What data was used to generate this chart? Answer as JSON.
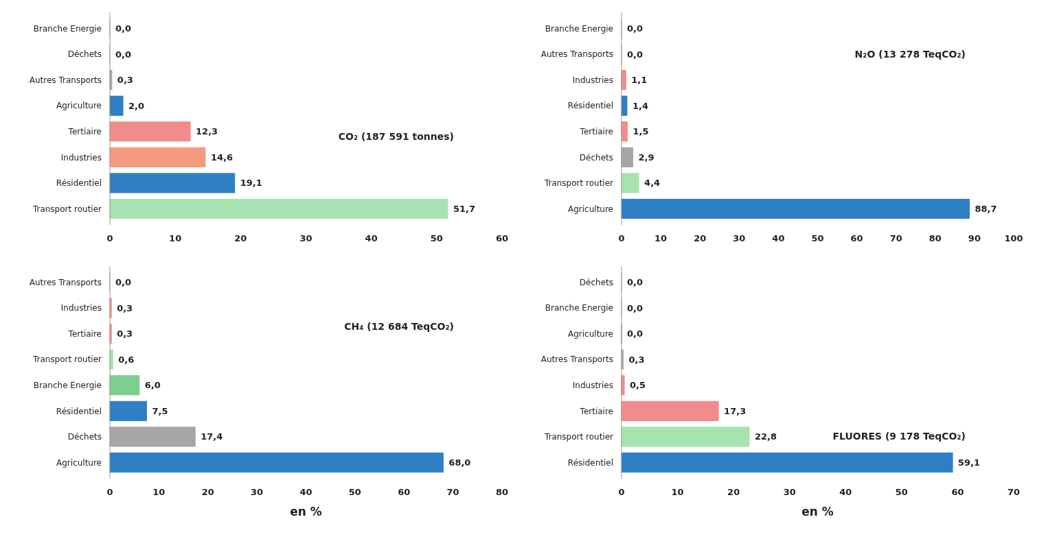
{
  "chart_data": [
    {
      "type": "bar",
      "orientation": "horizontal",
      "title": "CO₂ (187 591 tonnes)",
      "categories": [
        "Branche Energie",
        "Déchets",
        "Autres Transports",
        "Agriculture",
        "Tertiaire",
        "Industries",
        "Résidentiel",
        "Transport routier"
      ],
      "values": [
        0.0,
        0.0,
        0.3,
        2.0,
        12.3,
        14.6,
        19.1,
        51.7
      ],
      "colors": [
        "#7ccf8e",
        "#a6a6a6",
        "#a6a6a6",
        "#2e7fc4",
        "#f28b8b",
        "#f59a7f",
        "#2e7fc4",
        "#a6e3b0"
      ],
      "xlim": [
        0,
        60
      ],
      "xticks": [
        0,
        10,
        20,
        30,
        40,
        50,
        60
      ],
      "data_labels": true,
      "value_labels": [
        "0,0",
        "0,0",
        "0,3",
        "2,0",
        "12,3",
        "14,6",
        "19,1",
        "51,7"
      ],
      "grid": false
    },
    {
      "type": "bar",
      "orientation": "horizontal",
      "title": "N₂O (13 278 TeqCO₂)",
      "categories": [
        "Branche Energie",
        "Autres Transports",
        "Industries",
        "Résidentiel",
        "Tertiaire",
        "Déchets",
        "Transport routier",
        "Agriculture"
      ],
      "values": [
        0.0,
        0.0,
        1.1,
        1.4,
        1.5,
        2.9,
        4.4,
        88.7
      ],
      "colors": [
        "#7ccf8e",
        "#a6a6a6",
        "#f28b8b",
        "#2e7fc4",
        "#f28b8b",
        "#a6a6a6",
        "#a6e3b0",
        "#2e7fc4"
      ],
      "xlim": [
        0,
        100
      ],
      "xticks": [
        0,
        10,
        20,
        30,
        40,
        50,
        60,
        70,
        80,
        90,
        100
      ],
      "data_labels": true,
      "value_labels": [
        "0,0",
        "0,0",
        "1,1",
        "1,4",
        "1,5",
        "2,9",
        "4,4",
        "88,7"
      ],
      "grid": false
    },
    {
      "type": "bar",
      "orientation": "horizontal",
      "title": "CH₄ (12 684 TeqCO₂)",
      "xlabel": "en %",
      "categories": [
        "Autres Transports",
        "Industries",
        "Tertiaire",
        "Transport routier",
        "Branche Energie",
        "Résidentiel",
        "Déchets",
        "Agriculture"
      ],
      "values": [
        0.0,
        0.3,
        0.3,
        0.6,
        6.0,
        7.5,
        17.4,
        68.0
      ],
      "colors": [
        "#a6a6a6",
        "#f28b8b",
        "#f28b8b",
        "#a6e3b0",
        "#7ccf8e",
        "#2e7fc4",
        "#a6a6a6",
        "#2e7fc4"
      ],
      "xlim": [
        0,
        80
      ],
      "xticks": [
        0,
        10,
        20,
        30,
        40,
        50,
        60,
        70,
        80
      ],
      "data_labels": true,
      "value_labels": [
        "0,0",
        "0,3",
        "0,3",
        "0,6",
        "6,0",
        "7,5",
        "17,4",
        "68,0"
      ],
      "grid": false
    },
    {
      "type": "bar",
      "orientation": "horizontal",
      "title": "FLUORES (9 178 TeqCO₂)",
      "xlabel": "en %",
      "categories": [
        "Déchets",
        "Branche Energie",
        "Agriculture",
        "Autres Transports",
        "Industries",
        "Tertiaire",
        "Transport routier",
        "Résidentiel"
      ],
      "values": [
        0.0,
        0.0,
        0.0,
        0.3,
        0.5,
        17.3,
        22.8,
        59.1
      ],
      "colors": [
        "#a6a6a6",
        "#7ccf8e",
        "#2e7fc4",
        "#a6a6a6",
        "#f28b8b",
        "#f28b8b",
        "#a6e3b0",
        "#2e7fc4"
      ],
      "xlim": [
        0,
        70
      ],
      "xticks": [
        0,
        10,
        20,
        30,
        40,
        50,
        60,
        70
      ],
      "data_labels": true,
      "value_labels": [
        "0,0",
        "0,0",
        "0,0",
        "0,3",
        "0,5",
        "17,3",
        "22,8",
        "59,1"
      ],
      "grid": false
    }
  ]
}
